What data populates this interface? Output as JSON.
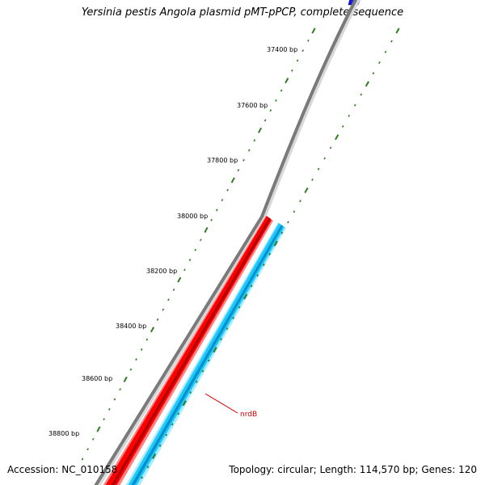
{
  "title": "Yersinia pestis Angola plasmid pMT-pPCP, complete sequence",
  "footer": {
    "accession": "Accession: NC_010158",
    "summary": "Topology: circular; Length: 114,570 bp; Genes: 120"
  },
  "ticks": [
    {
      "label": "37400 bp"
    },
    {
      "label": "37600 bp"
    },
    {
      "label": "37800 bp"
    },
    {
      "label": "38000 bp"
    },
    {
      "label": "38200 bp"
    },
    {
      "label": "38400 bp"
    },
    {
      "label": "38600 bp"
    },
    {
      "label": "38800 bp"
    }
  ],
  "gene": {
    "name": "nrdB"
  },
  "colors": {
    "backbone": "#8a8a8a",
    "forward_feature": "#ff0000",
    "reverse_feature": "#1ec8ff",
    "top_feature": "#0000ff",
    "ticks": "#2e7d1f",
    "label": "#d40000"
  }
}
